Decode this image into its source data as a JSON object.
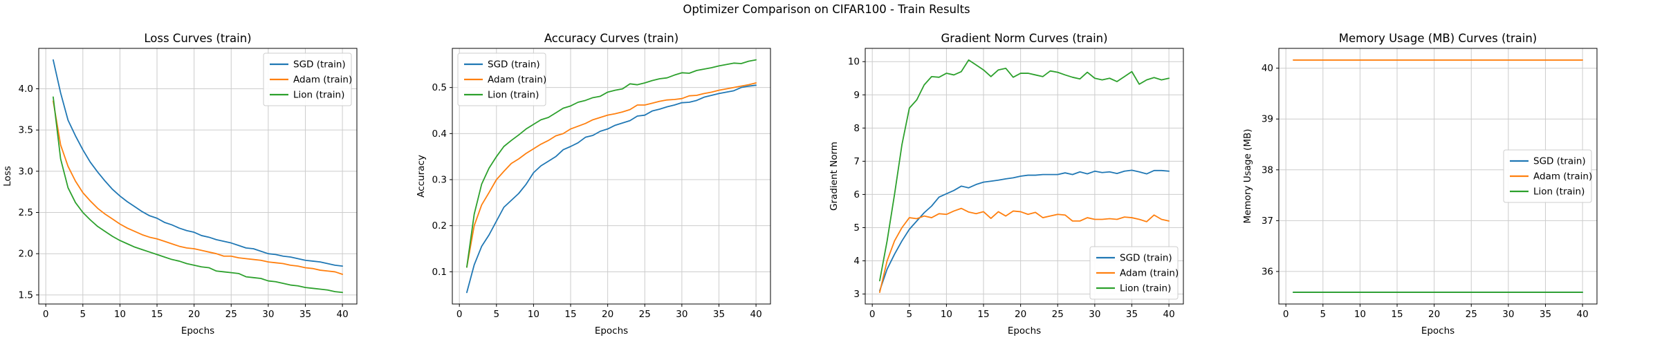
{
  "figure": {
    "title": "Optimizer Comparison on CIFAR100 - Train Results",
    "background": "#ffffff"
  },
  "colors": {
    "sgd": "#1f77b4",
    "adam": "#ff7f0e",
    "lion": "#2ca02c",
    "grid": "#cccccc",
    "spine": "#000000",
    "legend_border": "#cccccc",
    "text": "#000000"
  },
  "epochs": [
    1,
    2,
    3,
    4,
    5,
    6,
    7,
    8,
    9,
    10,
    11,
    12,
    13,
    14,
    15,
    16,
    17,
    18,
    19,
    20,
    21,
    22,
    23,
    24,
    25,
    26,
    27,
    28,
    29,
    30,
    31,
    32,
    33,
    34,
    35,
    36,
    37,
    38,
    39,
    40
  ],
  "chart_data": [
    {
      "type": "line",
      "title": "Loss Curves (train)",
      "xlabel": "Epochs",
      "ylabel": "Loss",
      "xlim": [
        -0.95,
        41.95
      ],
      "ylim": [
        1.39,
        4.49
      ],
      "xticks": [
        0,
        5,
        10,
        15,
        20,
        25,
        30,
        35,
        40
      ],
      "xtick_labels": [
        "0",
        "5",
        "10",
        "15",
        "20",
        "25",
        "30",
        "35",
        "40"
      ],
      "yticks": [
        1.5,
        2.0,
        2.5,
        3.0,
        3.5,
        4.0
      ],
      "ytick_labels": [
        "1.5",
        "2.0",
        "2.5",
        "3.0",
        "3.5",
        "4.0"
      ],
      "grid": true,
      "legend_pos": "top-right",
      "series": [
        {
          "name": "SGD (train)",
          "color_key": "sgd",
          "values": [
            4.35,
            3.95,
            3.62,
            3.43,
            3.26,
            3.11,
            2.99,
            2.88,
            2.78,
            2.7,
            2.63,
            2.57,
            2.51,
            2.46,
            2.43,
            2.38,
            2.35,
            2.31,
            2.28,
            2.26,
            2.22,
            2.2,
            2.17,
            2.15,
            2.13,
            2.1,
            2.07,
            2.06,
            2.03,
            2.0,
            1.99,
            1.97,
            1.96,
            1.94,
            1.92,
            1.91,
            1.9,
            1.88,
            1.86,
            1.85
          ]
        },
        {
          "name": "Adam (train)",
          "color_key": "adam",
          "values": [
            3.85,
            3.32,
            3.06,
            2.88,
            2.74,
            2.64,
            2.55,
            2.48,
            2.42,
            2.36,
            2.31,
            2.27,
            2.23,
            2.2,
            2.18,
            2.15,
            2.12,
            2.09,
            2.07,
            2.06,
            2.04,
            2.02,
            2.0,
            1.97,
            1.97,
            1.95,
            1.94,
            1.93,
            1.92,
            1.9,
            1.89,
            1.88,
            1.86,
            1.85,
            1.83,
            1.82,
            1.8,
            1.79,
            1.78,
            1.75
          ]
        },
        {
          "name": "Lion (train)",
          "color_key": "lion",
          "values": [
            3.9,
            3.15,
            2.8,
            2.62,
            2.5,
            2.41,
            2.33,
            2.27,
            2.21,
            2.16,
            2.12,
            2.08,
            2.05,
            2.02,
            1.99,
            1.96,
            1.93,
            1.91,
            1.88,
            1.86,
            1.84,
            1.83,
            1.79,
            1.78,
            1.77,
            1.76,
            1.72,
            1.71,
            1.7,
            1.67,
            1.66,
            1.64,
            1.62,
            1.61,
            1.59,
            1.58,
            1.57,
            1.56,
            1.54,
            1.53
          ]
        }
      ]
    },
    {
      "type": "line",
      "title": "Accuracy Curves (train)",
      "xlabel": "Epochs",
      "ylabel": "Accuracy",
      "xlim": [
        -0.95,
        41.95
      ],
      "ylim": [
        0.03,
        0.585
      ],
      "xticks": [
        0,
        5,
        10,
        15,
        20,
        25,
        30,
        35,
        40
      ],
      "xtick_labels": [
        "0",
        "5",
        "10",
        "15",
        "20",
        "25",
        "30",
        "35",
        "40"
      ],
      "yticks": [
        0.1,
        0.2,
        0.3,
        0.4,
        0.5
      ],
      "ytick_labels": [
        "0.1",
        "0.2",
        "0.3",
        "0.4",
        "0.5"
      ],
      "grid": true,
      "legend_pos": "top-left",
      "series": [
        {
          "name": "SGD (train)",
          "color_key": "sgd",
          "values": [
            0.055,
            0.115,
            0.155,
            0.18,
            0.21,
            0.24,
            0.255,
            0.27,
            0.29,
            0.315,
            0.33,
            0.34,
            0.35,
            0.365,
            0.372,
            0.38,
            0.392,
            0.396,
            0.405,
            0.41,
            0.418,
            0.423,
            0.428,
            0.438,
            0.44,
            0.449,
            0.453,
            0.458,
            0.462,
            0.467,
            0.468,
            0.472,
            0.479,
            0.483,
            0.487,
            0.49,
            0.493,
            0.5,
            0.503,
            0.505
          ]
        },
        {
          "name": "Adam (train)",
          "color_key": "adam",
          "values": [
            0.11,
            0.2,
            0.245,
            0.272,
            0.3,
            0.318,
            0.335,
            0.345,
            0.357,
            0.367,
            0.377,
            0.385,
            0.395,
            0.4,
            0.41,
            0.416,
            0.422,
            0.43,
            0.435,
            0.44,
            0.443,
            0.447,
            0.452,
            0.462,
            0.462,
            0.466,
            0.47,
            0.473,
            0.474,
            0.476,
            0.482,
            0.483,
            0.487,
            0.49,
            0.494,
            0.497,
            0.5,
            0.503,
            0.506,
            0.51
          ]
        },
        {
          "name": "Lion (train)",
          "color_key": "lion",
          "values": [
            0.11,
            0.225,
            0.29,
            0.325,
            0.35,
            0.372,
            0.385,
            0.397,
            0.41,
            0.42,
            0.43,
            0.435,
            0.445,
            0.455,
            0.46,
            0.468,
            0.472,
            0.478,
            0.481,
            0.49,
            0.494,
            0.497,
            0.508,
            0.506,
            0.51,
            0.515,
            0.519,
            0.521,
            0.527,
            0.532,
            0.531,
            0.537,
            0.54,
            0.543,
            0.547,
            0.55,
            0.553,
            0.552,
            0.557,
            0.56
          ]
        }
      ]
    },
    {
      "type": "line",
      "title": "Gradient Norm Curves (train)",
      "xlabel": "Epochs",
      "ylabel": "Gradient Norm",
      "xlim": [
        -0.95,
        41.95
      ],
      "ylim": [
        2.7,
        10.4
      ],
      "xticks": [
        0,
        5,
        10,
        15,
        20,
        25,
        30,
        35,
        40
      ],
      "xtick_labels": [
        "0",
        "5",
        "10",
        "15",
        "20",
        "25",
        "30",
        "35",
        "40"
      ],
      "yticks": [
        3,
        4,
        5,
        6,
        7,
        8,
        9,
        10
      ],
      "ytick_labels": [
        "3",
        "4",
        "5",
        "6",
        "7",
        "8",
        "9",
        "10"
      ],
      "grid": true,
      "legend_pos": "bottom-right",
      "series": [
        {
          "name": "SGD (train)",
          "color_key": "sgd",
          "values": [
            3.1,
            3.75,
            4.2,
            4.6,
            4.95,
            5.2,
            5.45,
            5.65,
            5.92,
            6.02,
            6.12,
            6.25,
            6.2,
            6.3,
            6.37,
            6.4,
            6.43,
            6.47,
            6.5,
            6.55,
            6.58,
            6.58,
            6.6,
            6.6,
            6.6,
            6.65,
            6.6,
            6.68,
            6.62,
            6.7,
            6.66,
            6.68,
            6.63,
            6.7,
            6.73,
            6.68,
            6.62,
            6.72,
            6.72,
            6.7
          ]
        },
        {
          "name": "Adam (train)",
          "color_key": "adam",
          "values": [
            3.05,
            4.0,
            4.6,
            5.0,
            5.3,
            5.27,
            5.35,
            5.3,
            5.42,
            5.4,
            5.5,
            5.58,
            5.47,
            5.42,
            5.48,
            5.28,
            5.48,
            5.35,
            5.5,
            5.48,
            5.4,
            5.46,
            5.3,
            5.35,
            5.4,
            5.38,
            5.2,
            5.2,
            5.3,
            5.25,
            5.25,
            5.27,
            5.25,
            5.32,
            5.3,
            5.25,
            5.18,
            5.38,
            5.25,
            5.2
          ]
        },
        {
          "name": "Lion (train)",
          "color_key": "lion",
          "values": [
            3.4,
            4.6,
            6.0,
            7.5,
            8.6,
            8.85,
            9.3,
            9.55,
            9.53,
            9.65,
            9.6,
            9.7,
            10.05,
            9.9,
            9.75,
            9.55,
            9.75,
            9.8,
            9.53,
            9.65,
            9.65,
            9.6,
            9.55,
            9.72,
            9.68,
            9.6,
            9.53,
            9.48,
            9.68,
            9.5,
            9.45,
            9.5,
            9.4,
            9.55,
            9.7,
            9.32,
            9.45,
            9.52,
            9.45,
            9.5
          ]
        }
      ]
    },
    {
      "type": "line",
      "title": "Memory Usage (MB) Curves (train)",
      "xlabel": "Epochs",
      "ylabel": "Memory Usage (MB)",
      "xlim": [
        -0.95,
        41.95
      ],
      "ylim": [
        35.36,
        40.39
      ],
      "xticks": [
        0,
        5,
        10,
        15,
        20,
        25,
        30,
        35,
        40
      ],
      "xtick_labels": [
        "0",
        "5",
        "10",
        "15",
        "20",
        "25",
        "30",
        "35",
        "40"
      ],
      "yticks": [
        36,
        37,
        38,
        39,
        40
      ],
      "ytick_labels": [
        "36",
        "37",
        "38",
        "39",
        "40"
      ],
      "grid": true,
      "legend_pos": "center-right",
      "series": [
        {
          "name": "SGD (train)",
          "color_key": "sgd",
          "constant": 35.59
        },
        {
          "name": "Adam (train)",
          "color_key": "adam",
          "constant": 40.16
        },
        {
          "name": "Lion (train)",
          "color_key": "lion",
          "constant": 35.59
        }
      ]
    }
  ]
}
